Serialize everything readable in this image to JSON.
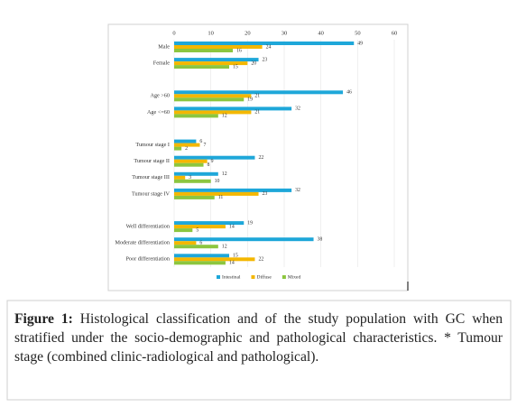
{
  "chart_data": {
    "type": "bar",
    "orientation": "horizontal",
    "categories": [
      "Male",
      "Female",
      null,
      "Age >60",
      "Age <=60",
      null,
      "Tumour stage I",
      "Tumour stage II",
      "Tumour stage III",
      "Tumour stage IV",
      null,
      "Well differentiation",
      "Moderate differentiation",
      "Poor differentiation"
    ],
    "series": [
      {
        "name": "Intestinal",
        "color": "#1ea7d9",
        "values": [
          49,
          23,
          null,
          46,
          32,
          null,
          6,
          22,
          12,
          32,
          null,
          19,
          38,
          15
        ]
      },
      {
        "name": "Diffuse",
        "color": "#f4b700",
        "values": [
          24,
          20,
          null,
          21,
          21,
          null,
          7,
          9,
          3,
          23,
          null,
          14,
          6,
          22
        ]
      },
      {
        "name": "Mixed",
        "color": "#8cc63f",
        "values": [
          16,
          15,
          null,
          19,
          12,
          null,
          2,
          8,
          10,
          11,
          null,
          5,
          12,
          14
        ]
      }
    ],
    "xlim": [
      0,
      60
    ],
    "xticks": [
      0,
      10,
      20,
      30,
      40,
      50,
      60
    ],
    "grid": true,
    "legend": "bottom"
  },
  "caption": {
    "label": "Figure 1:",
    "text": "Histological classification and of the study population with GC when stratified under the socio-demographic and pathological characteristics. * Tumour stage (combined clinic-radiological and pathological)."
  }
}
